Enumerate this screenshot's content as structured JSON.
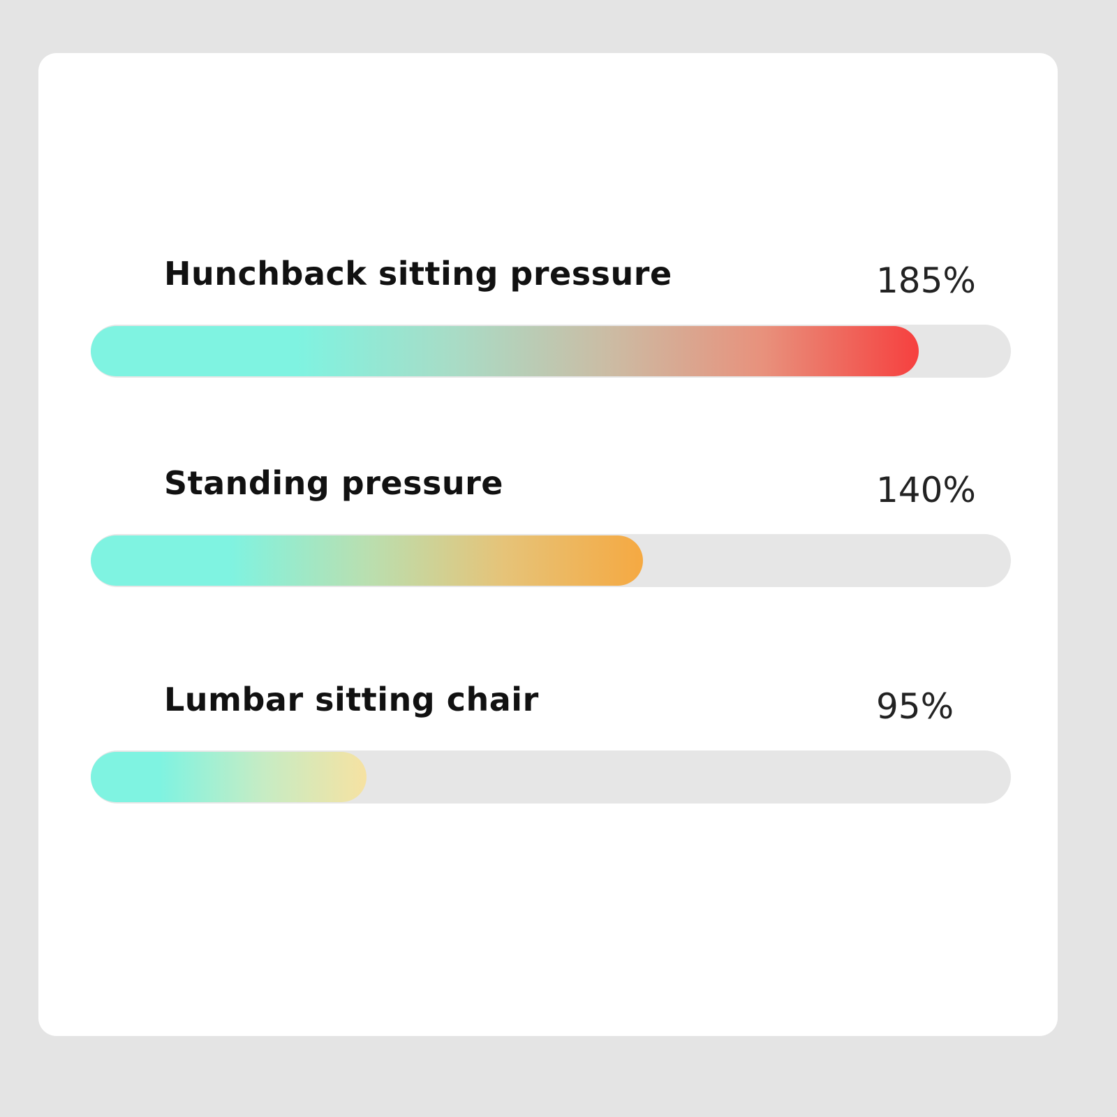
{
  "chart_data": {
    "type": "bar",
    "orientation": "horizontal",
    "categories": [
      "Hunchback sitting pressure",
      "Standing pressure",
      "Lumbar sitting chair"
    ],
    "values": [
      185,
      140,
      95
    ],
    "value_labels": [
      "185%",
      "140%",
      "95%"
    ],
    "fill_fractions": [
      0.9,
      0.6,
      0.3
    ],
    "gradients": [
      [
        "#7ff3e1",
        "#a8dcc6",
        "#cbbca4",
        "#e8917c",
        "#f6403f"
      ],
      [
        "#7ff3e1",
        "#b9dfb0",
        "#e6c378",
        "#f5a942"
      ],
      [
        "#7ff3e1",
        "#c6ecc4",
        "#f6e2a2"
      ]
    ],
    "track_color": "#e6e6e6",
    "title": "",
    "xlabel": "",
    "ylabel": "",
    "grid": false
  }
}
